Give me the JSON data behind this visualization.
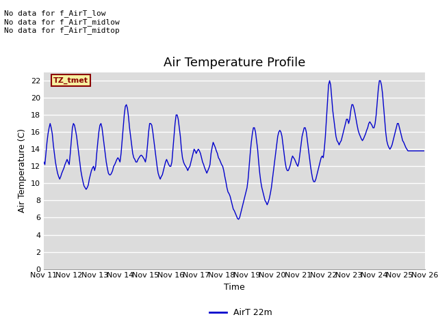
{
  "title": "Air Temperature Profile",
  "xlabel": "Time",
  "ylabel": "Air Temperature (C)",
  "legend_label": "AirT 22m",
  "annotations": [
    "No data for f_AirT_low",
    "No data for f_AirT_midlow",
    "No data for f_AirT_midtop"
  ],
  "tz_label": "TZ_tmet",
  "ylim": [
    0,
    23
  ],
  "yticks": [
    0,
    2,
    4,
    6,
    8,
    10,
    12,
    14,
    16,
    18,
    20,
    22
  ],
  "x_tick_labels": [
    "Nov 11",
    "Nov 12",
    "Nov 13",
    "Nov 14",
    "Nov 15",
    "Nov 16",
    "Nov 17",
    "Nov 18",
    "Nov 19",
    "Nov 20",
    "Nov 21",
    "Nov 22",
    "Nov 23",
    "Nov 24",
    "Nov 25",
    "Nov 26"
  ],
  "line_color": "#0000CC",
  "bg_color": "#DCDCDC",
  "plot_bg_light": "#F0F0F0",
  "plot_bg_dark": "#DCDCDC",
  "grid_color": "#FFFFFF",
  "title_fontsize": 13,
  "label_fontsize": 9,
  "tick_fontsize": 8,
  "temp": [
    12.5,
    12.2,
    13.5,
    14.8,
    15.8,
    16.5,
    17.0,
    16.5,
    15.8,
    14.5,
    13.5,
    12.5,
    11.8,
    11.2,
    10.8,
    10.5,
    10.8,
    11.2,
    11.5,
    11.8,
    12.2,
    12.5,
    12.8,
    12.5,
    12.2,
    13.5,
    15.0,
    16.5,
    17.0,
    16.8,
    16.2,
    15.5,
    14.5,
    13.5,
    12.5,
    11.5,
    10.8,
    10.2,
    9.7,
    9.5,
    9.3,
    9.5,
    9.8,
    10.5,
    11.0,
    11.5,
    11.8,
    12.0,
    11.5,
    12.0,
    13.5,
    14.8,
    16.0,
    16.8,
    17.0,
    16.5,
    15.5,
    14.5,
    13.5,
    12.5,
    11.8,
    11.2,
    11.0,
    11.0,
    11.2,
    11.5,
    12.0,
    12.2,
    12.5,
    12.8,
    13.0,
    12.8,
    12.5,
    13.5,
    15.0,
    16.5,
    18.0,
    19.0,
    19.2,
    18.8,
    17.8,
    16.5,
    15.5,
    14.5,
    13.5,
    13.0,
    12.8,
    12.5,
    12.5,
    12.8,
    13.0,
    13.2,
    13.3,
    13.2,
    13.0,
    12.8,
    12.5,
    13.2,
    14.5,
    16.0,
    17.0,
    17.0,
    16.8,
    16.0,
    15.0,
    14.0,
    13.0,
    12.0,
    11.2,
    10.8,
    10.5,
    10.8,
    11.0,
    11.5,
    12.0,
    12.5,
    12.8,
    12.5,
    12.2,
    12.0,
    12.0,
    12.5,
    14.0,
    15.5,
    17.0,
    18.0,
    18.0,
    17.5,
    16.5,
    15.5,
    14.0,
    13.0,
    12.5,
    12.2,
    12.0,
    11.8,
    11.5,
    11.8,
    12.0,
    12.5,
    13.0,
    13.5,
    14.0,
    13.8,
    13.5,
    13.8,
    14.0,
    13.8,
    13.5,
    13.0,
    12.5,
    12.2,
    11.8,
    11.5,
    11.2,
    11.5,
    11.8,
    12.2,
    13.5,
    14.2,
    14.8,
    14.5,
    14.2,
    13.8,
    13.5,
    13.0,
    12.8,
    12.5,
    12.2,
    12.0,
    11.5,
    10.8,
    10.2,
    9.5,
    9.0,
    8.8,
    8.5,
    8.0,
    7.5,
    7.0,
    6.8,
    6.5,
    6.2,
    5.9,
    5.8,
    6.0,
    6.5,
    7.0,
    7.5,
    8.0,
    8.5,
    9.0,
    9.5,
    10.5,
    12.0,
    13.5,
    14.8,
    15.8,
    16.5,
    16.5,
    16.0,
    15.0,
    14.0,
    12.5,
    11.2,
    10.2,
    9.5,
    9.0,
    8.5,
    8.0,
    7.8,
    7.5,
    7.8,
    8.2,
    8.8,
    9.5,
    10.5,
    11.5,
    12.5,
    13.5,
    14.5,
    15.5,
    16.0,
    16.2,
    16.0,
    15.5,
    14.5,
    13.5,
    12.5,
    11.8,
    11.5,
    11.5,
    11.8,
    12.2,
    12.8,
    13.2,
    13.0,
    12.8,
    12.5,
    12.2,
    12.0,
    12.5,
    13.5,
    14.5,
    15.5,
    16.0,
    16.5,
    16.5,
    16.0,
    15.0,
    14.0,
    13.0,
    12.0,
    11.2,
    10.5,
    10.2,
    10.2,
    10.5,
    11.0,
    11.5,
    12.0,
    12.5,
    13.0,
    13.2,
    13.0,
    14.0,
    15.5,
    17.5,
    19.5,
    21.5,
    22.0,
    21.5,
    20.0,
    18.5,
    17.5,
    16.5,
    15.5,
    15.0,
    14.8,
    14.5,
    14.8,
    15.0,
    15.5,
    16.0,
    16.5,
    17.0,
    17.5,
    17.5,
    17.0,
    17.5,
    18.5,
    19.2,
    19.2,
    18.8,
    18.2,
    17.5,
    16.8,
    16.2,
    15.8,
    15.5,
    15.2,
    15.0,
    15.2,
    15.5,
    15.8,
    16.2,
    16.5,
    17.0,
    17.2,
    17.0,
    16.8,
    16.5,
    16.5,
    17.0,
    18.0,
    19.5,
    21.0,
    22.0,
    22.0,
    21.5,
    20.5,
    19.0,
    17.5,
    16.0,
    15.0,
    14.5,
    14.2,
    14.0,
    14.2,
    14.5,
    15.0,
    15.5,
    16.0,
    16.5,
    17.0,
    17.0,
    16.5,
    16.0,
    15.5,
    15.0,
    14.8,
    14.5,
    14.2,
    14.0,
    13.8,
    13.8,
    13.8,
    13.8,
    13.8,
    13.8,
    13.8,
    13.8,
    13.8,
    13.8,
    13.8,
    13.8,
    13.8,
    13.8,
    13.8,
    13.8
  ]
}
